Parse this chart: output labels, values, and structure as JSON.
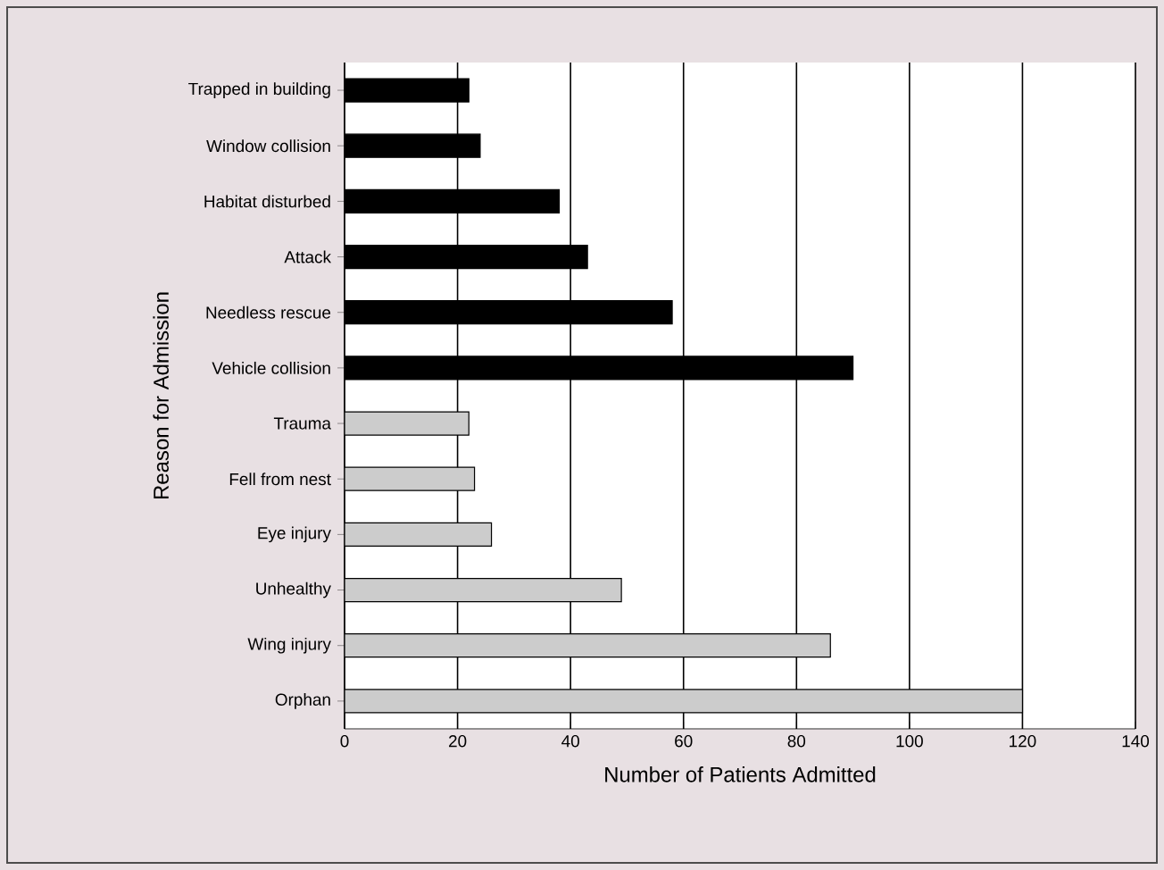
{
  "chart_data": {
    "type": "bar",
    "orientation": "horizontal",
    "xlabel": "Number of Patients Admitted",
    "ylabel": "Reason for Admission",
    "categories": [
      "Trapped in building",
      "Window collision",
      "Habitat disturbed",
      "Attack",
      "Needless rescue",
      "Vehicle collision",
      "Trauma",
      "Fell from nest",
      "Eye injury",
      "Unhealthy",
      "Wing injury",
      "Orphan"
    ],
    "values": [
      22,
      24,
      38,
      43,
      58,
      90,
      22,
      23,
      26,
      49,
      86,
      120
    ],
    "colors": [
      "#000000",
      "#000000",
      "#000000",
      "#000000",
      "#000000",
      "#000000",
      "#cccccc",
      "#cccccc",
      "#cccccc",
      "#cccccc",
      "#cccccc",
      "#cccccc"
    ],
    "xlim": [
      0,
      140
    ],
    "xticks": [
      0,
      20,
      40,
      60,
      80,
      100,
      120,
      140
    ],
    "grid": "x"
  }
}
